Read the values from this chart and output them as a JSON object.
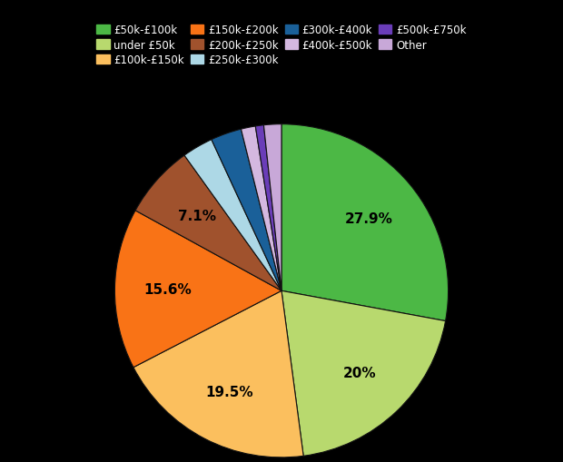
{
  "labels": [
    "£50k-£100k",
    "under £50k",
    "£100k-£150k",
    "£150k-£200k",
    "£200k-£250k",
    "£250k-£300k",
    "£300k-£400k",
    "£400k-£500k",
    "£500k-£750k",
    "Other"
  ],
  "values": [
    27.9,
    20.0,
    19.5,
    15.6,
    7.1,
    3.0,
    3.0,
    1.4,
    0.8,
    1.7
  ],
  "colors": [
    "#4cb845",
    "#b8d96e",
    "#fbbf5e",
    "#f97316",
    "#a0522d",
    "#add8e6",
    "#1a6099",
    "#d4b8e0",
    "#6a3db8",
    "#c8a8d8"
  ],
  "autopct_labels": [
    "27.9%",
    "20%",
    "19.5%",
    "15.6%",
    "7.1%",
    "",
    "",
    "",
    "",
    ""
  ],
  "background_color": "#000000",
  "text_color": "#ffffff",
  "legend_fontsize": 8.5,
  "startangle": 90
}
